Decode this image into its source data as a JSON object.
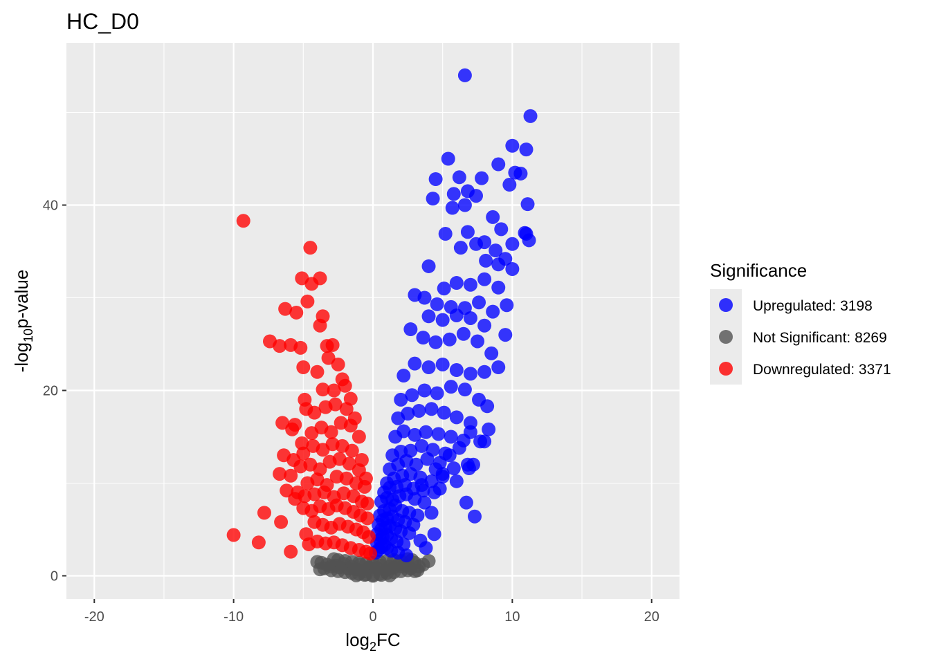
{
  "chart_data": {
    "type": "scatter",
    "title": "HC_D0",
    "xlabel": {
      "base": "log",
      "sub": "2",
      "rest": "FC"
    },
    "ylabel": {
      "pre": "-log",
      "sub": "10",
      "rest": "p-value"
    },
    "xlim": [
      -22,
      22
    ],
    "ylim": [
      -2.5,
      57.5
    ],
    "x_ticks": [
      -20,
      -10,
      0,
      10,
      20
    ],
    "x_tick_labels": [
      "-20",
      "-10",
      "0",
      "10",
      "20"
    ],
    "y_ticks": [
      0,
      20,
      40
    ],
    "y_tick_labels": [
      "0",
      "20",
      "40"
    ],
    "grid": true,
    "legend": {
      "title": "Significance",
      "position": "right",
      "entries": [
        {
          "label": "Upregulated: 3198",
          "color": "#0000FF"
        },
        {
          "label": "Not Significant: 8269",
          "color": "#525252"
        },
        {
          "label": "Downregulated: 3371",
          "color": "#FF0000"
        }
      ]
    },
    "series": [
      {
        "name": "Not Significant",
        "color": "#525252",
        "x": [
          -4.0,
          -3.7,
          -3.3,
          -3.0,
          -2.7,
          -2.4,
          -2.1,
          -1.8,
          -1.5,
          -1.2,
          -0.9,
          -0.6,
          -0.3,
          0.0,
          0.3,
          0.6,
          0.9,
          1.2,
          1.5,
          1.8,
          2.1,
          2.4,
          2.7,
          3.0,
          3.3,
          3.6,
          4.0,
          -3.5,
          -3.0,
          -2.5,
          -2.0,
          -1.5,
          -1.0,
          -0.5,
          0.0,
          0.5,
          1.0,
          1.5,
          2.0,
          2.5,
          3.0,
          -2.5,
          -2.0,
          -1.5,
          -1.0,
          -0.5,
          0.0,
          0.5,
          1.0,
          1.5,
          2.0,
          2.5,
          -1.2,
          -0.6,
          0.0,
          0.6,
          1.2,
          -3.8,
          3.2,
          -2.8,
          2.8
        ],
        "y": [
          1.5,
          1.4,
          1.2,
          1.0,
          1.1,
          0.9,
          1.3,
          0.8,
          1.0,
          0.7,
          1.2,
          0.5,
          0.9,
          1.0,
          0.8,
          1.1,
          0.6,
          1.0,
          0.9,
          1.2,
          1.0,
          1.1,
          0.8,
          1.4,
          1.0,
          1.2,
          1.6,
          0.8,
          0.6,
          0.5,
          0.4,
          0.3,
          0.2,
          0.15,
          0.1,
          0.2,
          0.3,
          0.4,
          0.5,
          0.6,
          0.5,
          1.7,
          1.6,
          1.5,
          1.4,
          1.3,
          1.4,
          1.5,
          1.6,
          1.7,
          1.6,
          1.8,
          0.05,
          0.1,
          0.0,
          0.1,
          0.05,
          0.7,
          0.6,
          1.8,
          1.7
        ]
      },
      {
        "name": "Upregulated",
        "color": "#0000FF",
        "x": [
          6.6,
          11.3,
          10.0,
          11.0,
          9.0,
          5.4,
          6.2,
          4.5,
          5.8,
          7.8,
          6.8,
          9.8,
          10.2,
          10.6,
          5.7,
          6.6,
          7.4,
          8.6,
          10.9,
          11.2,
          4.3,
          6.8,
          8.0,
          9.2,
          8.8,
          9.5,
          10.0,
          11.0,
          11.1,
          5.2,
          6.3,
          7.4,
          8.1,
          9.0,
          10.0,
          4.0,
          5.1,
          6.0,
          7.0,
          8.0,
          9.0,
          3.7,
          4.6,
          5.6,
          6.6,
          7.6,
          8.6,
          9.6,
          3.0,
          4.0,
          5.0,
          6.0,
          7.0,
          8.0,
          9.5,
          2.7,
          3.6,
          4.5,
          5.5,
          6.5,
          7.5,
          8.5,
          2.2,
          3.0,
          4.0,
          5.0,
          6.0,
          7.0,
          8.0,
          9.0,
          2.0,
          2.8,
          3.7,
          4.6,
          5.6,
          6.6,
          7.6,
          8.2,
          1.8,
          2.5,
          3.3,
          4.2,
          5.1,
          6.0,
          7.0,
          8.3,
          1.6,
          2.2,
          3.0,
          3.8,
          4.7,
          5.6,
          6.5,
          7.7,
          1.4,
          2.0,
          2.7,
          3.5,
          4.3,
          5.2,
          6.2,
          6.8,
          1.2,
          1.8,
          2.4,
          3.1,
          3.9,
          4.8,
          5.8,
          6.9,
          1.0,
          1.5,
          2.1,
          2.7,
          3.4,
          4.2,
          5.0,
          0.8,
          1.2,
          1.7,
          2.3,
          2.9,
          3.6,
          4.4,
          0.6,
          1.0,
          1.4,
          1.9,
          2.4,
          3.0,
          3.7,
          0.5,
          0.8,
          1.2,
          1.6,
          2.1,
          2.6,
          3.2,
          4.2,
          0.4,
          0.7,
          1.0,
          1.4,
          1.8,
          2.3,
          2.9,
          4.4,
          0.3,
          0.6,
          0.9,
          1.2,
          1.6,
          2.0,
          2.6,
          3.4,
          0.3,
          0.5,
          0.7,
          1.0,
          1.3,
          1.7,
          2.2,
          3.8,
          0.2,
          0.4,
          0.6,
          0.8,
          1.0,
          1.3,
          1.8,
          2.4,
          6.7,
          7.3,
          4.8,
          3.5,
          5.0,
          6.0,
          7.2,
          8.0,
          7.0,
          5.5,
          4.5
        ],
        "y": [
          54.0,
          49.6,
          46.4,
          46.0,
          44.4,
          45.0,
          43.0,
          42.8,
          41.2,
          42.9,
          41.5,
          42.2,
          43.5,
          43.4,
          39.7,
          40.0,
          41.0,
          38.7,
          37.0,
          36.2,
          40.7,
          37.1,
          36.0,
          37.4,
          35.1,
          34.2,
          35.8,
          36.9,
          40.1,
          36.9,
          35.4,
          35.8,
          34.0,
          33.6,
          33.1,
          33.4,
          31.0,
          31.6,
          31.4,
          32.0,
          31.1,
          30.0,
          29.3,
          29.0,
          28.9,
          29.5,
          28.5,
          29.2,
          30.3,
          28.0,
          27.6,
          28.1,
          27.8,
          27.0,
          26.0,
          26.6,
          25.7,
          25.2,
          25.5,
          26.1,
          25.3,
          24.0,
          21.6,
          22.9,
          22.5,
          22.8,
          22.2,
          21.8,
          22.0,
          22.5,
          19.0,
          19.5,
          20.0,
          19.7,
          20.4,
          20.1,
          19.0,
          18.3,
          17.0,
          17.5,
          17.8,
          18.0,
          17.6,
          17.1,
          16.5,
          15.8,
          15.0,
          15.6,
          15.2,
          15.5,
          15.3,
          15.0,
          14.6,
          14.5,
          13.0,
          13.4,
          13.5,
          14.0,
          13.6,
          13.2,
          13.8,
          12.0,
          11.5,
          12.0,
          12.4,
          12.0,
          12.6,
          12.2,
          11.6,
          11.6,
          10.0,
          10.5,
          10.8,
          11.0,
          10.6,
          10.2,
          10.7,
          9.0,
          9.5,
          9.6,
          9.8,
          9.4,
          9.2,
          9.0,
          8.0,
          8.4,
          8.2,
          8.6,
          8.8,
          8.3,
          7.9,
          6.5,
          7.0,
          7.2,
          7.6,
          7.0,
          6.8,
          6.5,
          6.8,
          5.5,
          6.0,
          6.2,
          6.4,
          6.0,
          5.8,
          5.5,
          4.5,
          4.5,
          5.0,
          5.2,
          5.4,
          5.1,
          4.8,
          4.6,
          3.8,
          3.5,
          3.9,
          4.2,
          4.4,
          4.0,
          3.7,
          3.4,
          3.0,
          2.5,
          2.8,
          3.1,
          3.3,
          3.0,
          2.7,
          2.5,
          2.2,
          7.9,
          6.4,
          9.4,
          9.8,
          11.0,
          10.2,
          12.0,
          14.5,
          15.5,
          13.0,
          11.5
        ]
      },
      {
        "name": "Downregulated",
        "color": "#FF0000",
        "x": [
          -9.3,
          -4.5,
          -5.1,
          -4.4,
          -4.7,
          -3.8,
          -6.3,
          -5.5,
          -3.8,
          -3.6,
          -7.4,
          -6.7,
          -5.9,
          -5.2,
          -3.3,
          -2.9,
          -5.0,
          -4.0,
          -3.2,
          -2.5,
          -2.2,
          -4.9,
          -3.6,
          -2.8,
          -2.0,
          -1.6,
          -6.5,
          -5.6,
          -4.8,
          -4.2,
          -3.4,
          -2.7,
          -1.9,
          -1.3,
          -5.8,
          -5.1,
          -4.4,
          -3.7,
          -3.0,
          -2.3,
          -1.6,
          -1.0,
          -6.4,
          -5.7,
          -5.0,
          -4.3,
          -3.6,
          -2.9,
          -2.2,
          -1.5,
          -0.8,
          -6.7,
          -5.9,
          -5.2,
          -4.5,
          -3.8,
          -3.1,
          -2.4,
          -1.7,
          -1.0,
          -0.5,
          -6.2,
          -5.4,
          -4.7,
          -4.0,
          -3.3,
          -2.6,
          -1.9,
          -1.2,
          -0.6,
          -5.6,
          -4.9,
          -4.2,
          -3.5,
          -2.8,
          -2.1,
          -1.4,
          -0.8,
          -0.4,
          -7.8,
          -6.6,
          -5.0,
          -4.4,
          -3.8,
          -3.2,
          -2.6,
          -2.0,
          -1.4,
          -0.9,
          -0.4,
          -10.0,
          -8.2,
          -5.9,
          -4.8,
          -4.2,
          -3.6,
          -3.0,
          -2.4,
          -1.8,
          -1.2,
          -0.7,
          -0.3,
          -4.6,
          -4.0,
          -3.4,
          -2.8,
          -2.2,
          -1.6,
          -1.0,
          -0.5,
          -0.2
        ],
        "y": [
          38.3,
          35.4,
          32.1,
          31.5,
          29.6,
          32.1,
          28.8,
          28.4,
          27.0,
          28.0,
          25.3,
          24.8,
          24.9,
          24.6,
          24.8,
          24.9,
          22.5,
          22.0,
          23.5,
          22.8,
          21.2,
          19.0,
          20.1,
          20.0,
          20.5,
          19.1,
          16.5,
          16.3,
          18.0,
          17.6,
          18.2,
          18.5,
          18.0,
          17.0,
          15.8,
          14.3,
          15.4,
          16.0,
          15.5,
          16.5,
          16.2,
          15.0,
          13.0,
          12.5,
          13.2,
          14.0,
          13.6,
          14.2,
          14.0,
          13.5,
          12.5,
          11.0,
          10.8,
          11.8,
          12.0,
          11.5,
          12.3,
          12.6,
          12.1,
          11.4,
          10.5,
          9.2,
          9.0,
          10.0,
          10.4,
          9.8,
          10.7,
          10.5,
          10.0,
          9.6,
          8.3,
          8.6,
          8.8,
          9.0,
          8.5,
          8.9,
          8.6,
          8.0,
          7.8,
          6.8,
          5.8,
          7.3,
          7.0,
          7.5,
          7.2,
          7.6,
          7.3,
          6.9,
          6.5,
          6.2,
          4.4,
          3.6,
          2.6,
          4.5,
          5.8,
          5.5,
          5.2,
          5.6,
          5.3,
          5.0,
          4.7,
          4.2,
          3.4,
          3.7,
          3.5,
          3.6,
          3.3,
          3.0,
          2.8,
          2.6,
          2.4
        ]
      }
    ]
  }
}
